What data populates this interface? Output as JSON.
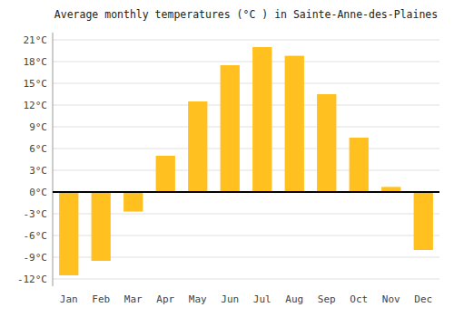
{
  "chart_data": {
    "type": "bar",
    "title": "Average monthly temperatures (°C ) in Sainte-Anne-des-Plaines",
    "categories": [
      "Jan",
      "Feb",
      "Mar",
      "Apr",
      "May",
      "Jun",
      "Jul",
      "Aug",
      "Sep",
      "Oct",
      "Nov",
      "Dec"
    ],
    "values": [
      -11.5,
      -9.5,
      -2.7,
      5.0,
      12.5,
      17.5,
      20.0,
      18.8,
      13.5,
      7.5,
      0.7,
      -8.0
    ],
    "color": "#FFC020",
    "ylim": [
      -13,
      22
    ],
    "yticks": [
      {
        "value": -12,
        "label": "-12°C"
      },
      {
        "value": -9,
        "label": "-9°C"
      },
      {
        "value": -6,
        "label": "-6°C"
      },
      {
        "value": -3,
        "label": "-3°C"
      },
      {
        "value": 0,
        "label": "0°C"
      },
      {
        "value": 3,
        "label": "3°C"
      },
      {
        "value": 6,
        "label": "6°C"
      },
      {
        "value": 9,
        "label": "9°C"
      },
      {
        "value": 12,
        "label": "12°C"
      },
      {
        "value": 15,
        "label": "15°C"
      },
      {
        "value": 18,
        "label": "18°C"
      },
      {
        "value": 21,
        "label": "21°C"
      }
    ],
    "grid": true
  }
}
